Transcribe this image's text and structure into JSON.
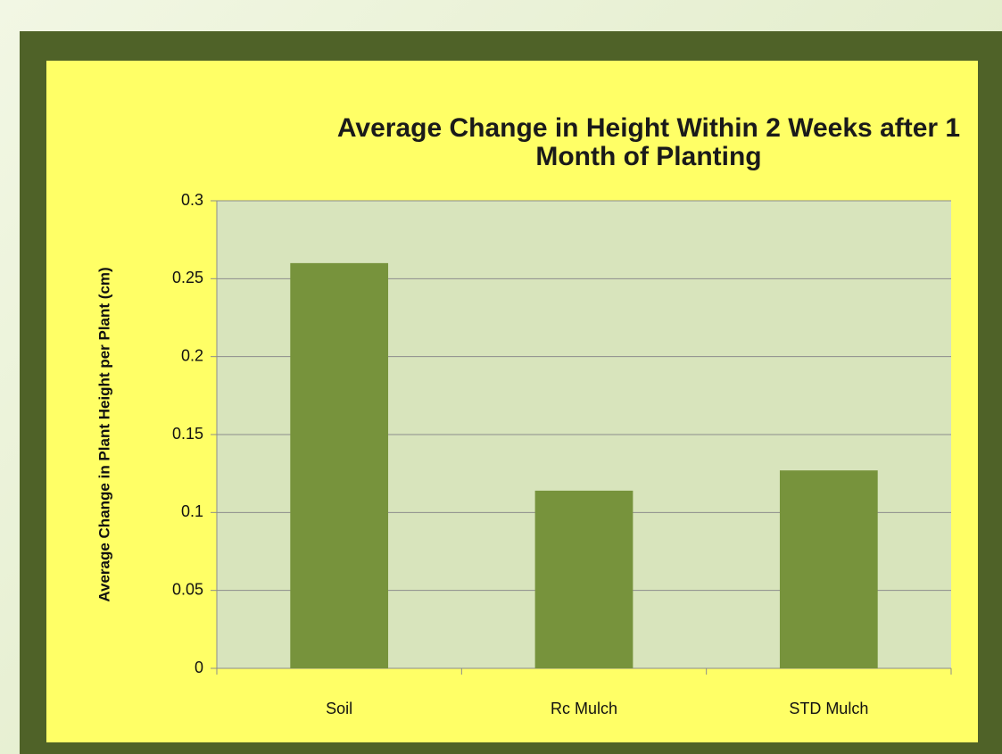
{
  "chart_data": {
    "type": "bar",
    "title": "Average Change in Height Within 2 Weeks after 1 Month of Planting",
    "y_label": "Average Change in Plant Height per Plant (cm)",
    "categories": [
      "Soil",
      "Rc Mulch",
      "STD Mulch"
    ],
    "values": [
      0.26,
      0.114,
      0.127
    ],
    "color": "#77933c",
    "ylim": [
      0,
      0.3
    ],
    "yticks": [
      0,
      0.05,
      0.1,
      0.15,
      0.2,
      0.25,
      0.3
    ],
    "grid": true
  }
}
